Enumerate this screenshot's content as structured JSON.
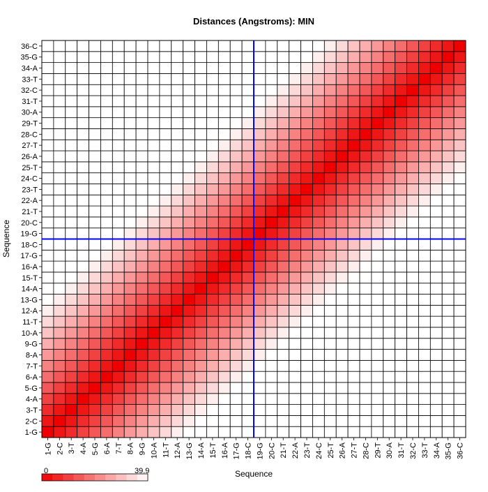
{
  "chart_data": {
    "type": "heatmap",
    "title": "Distances (Angstroms):  MIN",
    "xlabel": "Sequence",
    "ylabel": "Sequence",
    "labels": [
      "1-G",
      "2-C",
      "3-T",
      "4-A",
      "5-G",
      "6-A",
      "7-T",
      "8-A",
      "9-G",
      "10-A",
      "11-T",
      "12-A",
      "13-G",
      "14-A",
      "15-T",
      "16-A",
      "17-G",
      "18-C",
      "19-G",
      "20-C",
      "21-T",
      "22-A",
      "23-T",
      "24-C",
      "25-T",
      "26-A",
      "27-T",
      "28-C",
      "29-T",
      "30-A",
      "31-T",
      "32-C",
      "33-T",
      "34-A",
      "35-G",
      "36-C"
    ],
    "value_min": 0,
    "value_max": 39.9,
    "scale_min_label": "0",
    "scale_max_label": "39.9",
    "colors": {
      "low": "#ee0000",
      "high": "#ffffff",
      "grid": "#000000",
      "crosshair": "#0000ff"
    },
    "highlight": {
      "x": "18-C",
      "y": "18-C"
    },
    "grid": true,
    "model": "distance value for pair (i,j) = min(39.9, 3.4 * |i - j|)"
  }
}
